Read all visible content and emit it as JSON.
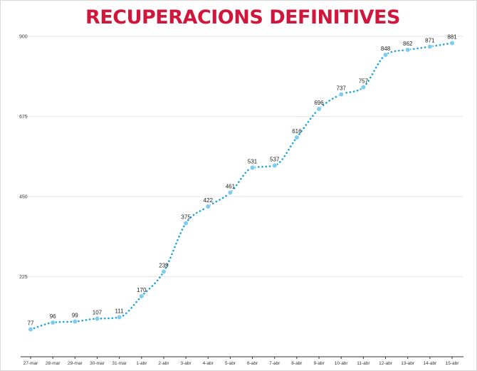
{
  "chart_data": {
    "type": "line",
    "title": "RECUPERACIONS DEFINITIVES",
    "xlabel": "",
    "ylabel": "",
    "categories": [
      "27-mar",
      "28-mar",
      "29-mar",
      "30-mar",
      "31-mar",
      "1-abr",
      "2-abr",
      "3-abr",
      "4-abr",
      "5-abr",
      "6-abr",
      "7-abr",
      "8-abr",
      "9-abr",
      "10-abr",
      "11-abr",
      "12-abr",
      "13-abr",
      "14-abr",
      "15-abr"
    ],
    "series": [
      {
        "values": [
          77,
          96,
          99,
          107,
          111,
          170,
          239,
          375,
          422,
          461,
          531,
          537,
          616,
          696,
          737,
          757,
          848,
          862,
          871,
          881
        ]
      }
    ],
    "ylim": [
      0,
      900
    ],
    "yticks": [
      "900",
      "675",
      "450",
      "225"
    ],
    "ytick_values": [
      900,
      675,
      450,
      225
    ],
    "grid": true,
    "legend": "none",
    "colors": {
      "title": "#d1163c",
      "line": "#1aa3df",
      "marker": "#7ecdf0"
    }
  }
}
